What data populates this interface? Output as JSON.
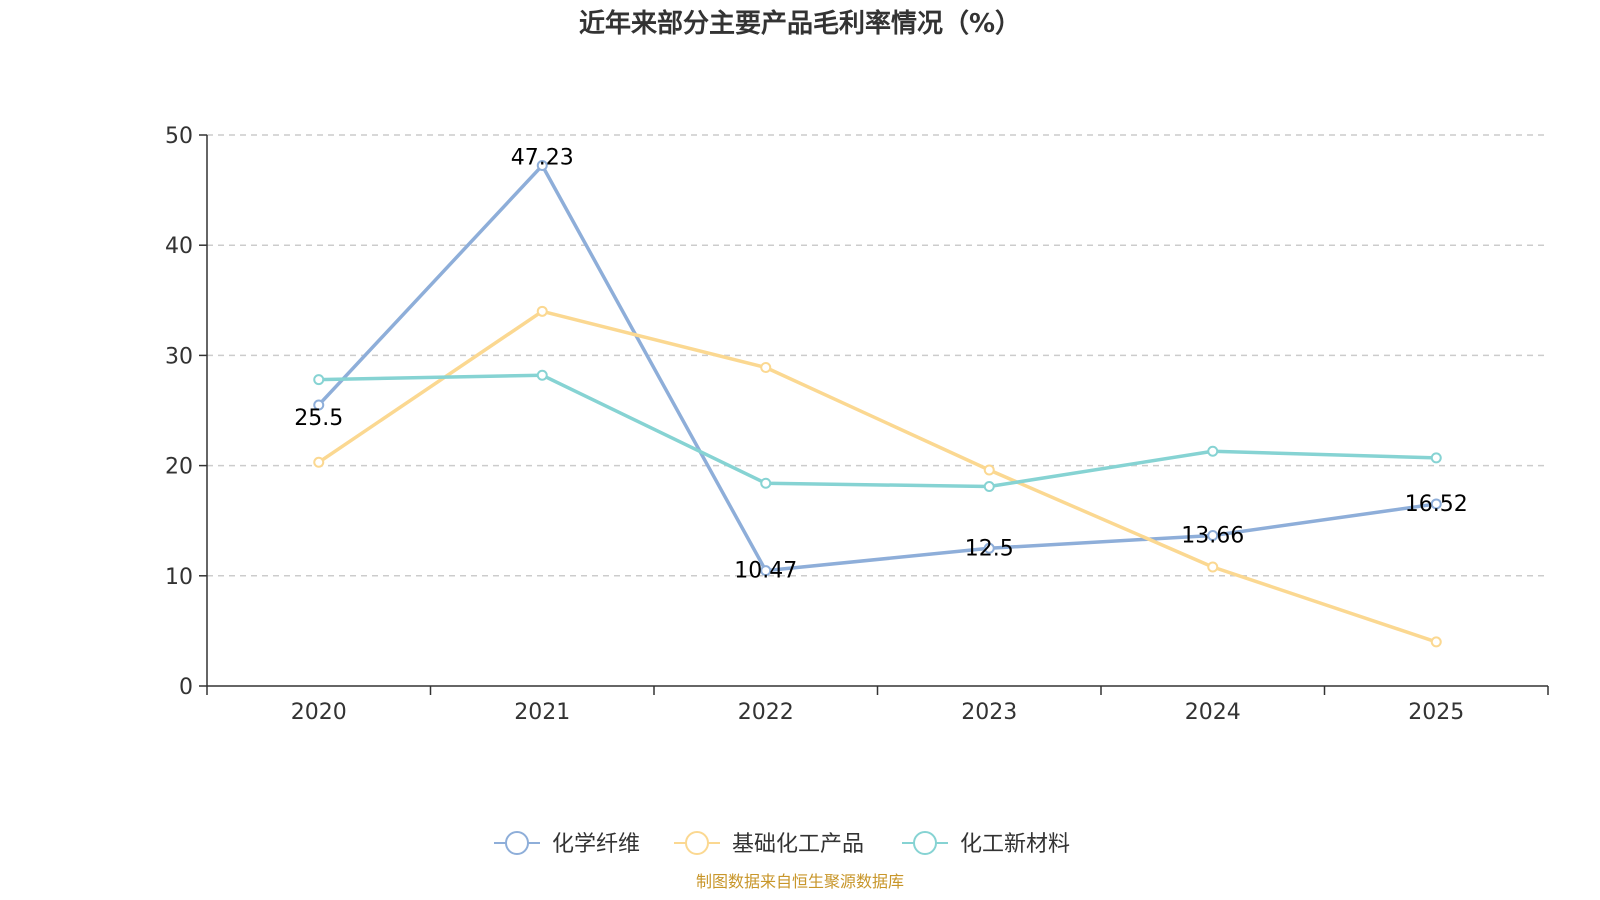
{
  "chart_data": {
    "type": "line",
    "title": "近年来部分主要产品毛利率情况（%）",
    "categories": [
      "2020",
      "2021",
      "2022",
      "2023",
      "2024",
      "2025"
    ],
    "ylim": [
      0,
      50
    ],
    "yticks": [
      0,
      10,
      20,
      30,
      40,
      50
    ],
    "grid": true,
    "legend_position": "bottom",
    "series": [
      {
        "name": "化学纤维",
        "color": "#8eaed9",
        "values": [
          25.5,
          47.23,
          10.47,
          12.5,
          13.66,
          16.52
        ],
        "labels": [
          "25.5",
          "47.23",
          "10.47",
          "12.5",
          "13.66",
          "16.52"
        ]
      },
      {
        "name": "基础化工产品",
        "color": "#fbd891",
        "values": [
          20.3,
          34.0,
          28.9,
          19.6,
          10.8,
          4.0
        ]
      },
      {
        "name": "化工新材料",
        "color": "#86d3d3",
        "values": [
          27.8,
          28.2,
          18.4,
          18.1,
          21.3,
          20.7
        ]
      }
    ],
    "source": "制图数据来自恒生聚源数据库"
  }
}
